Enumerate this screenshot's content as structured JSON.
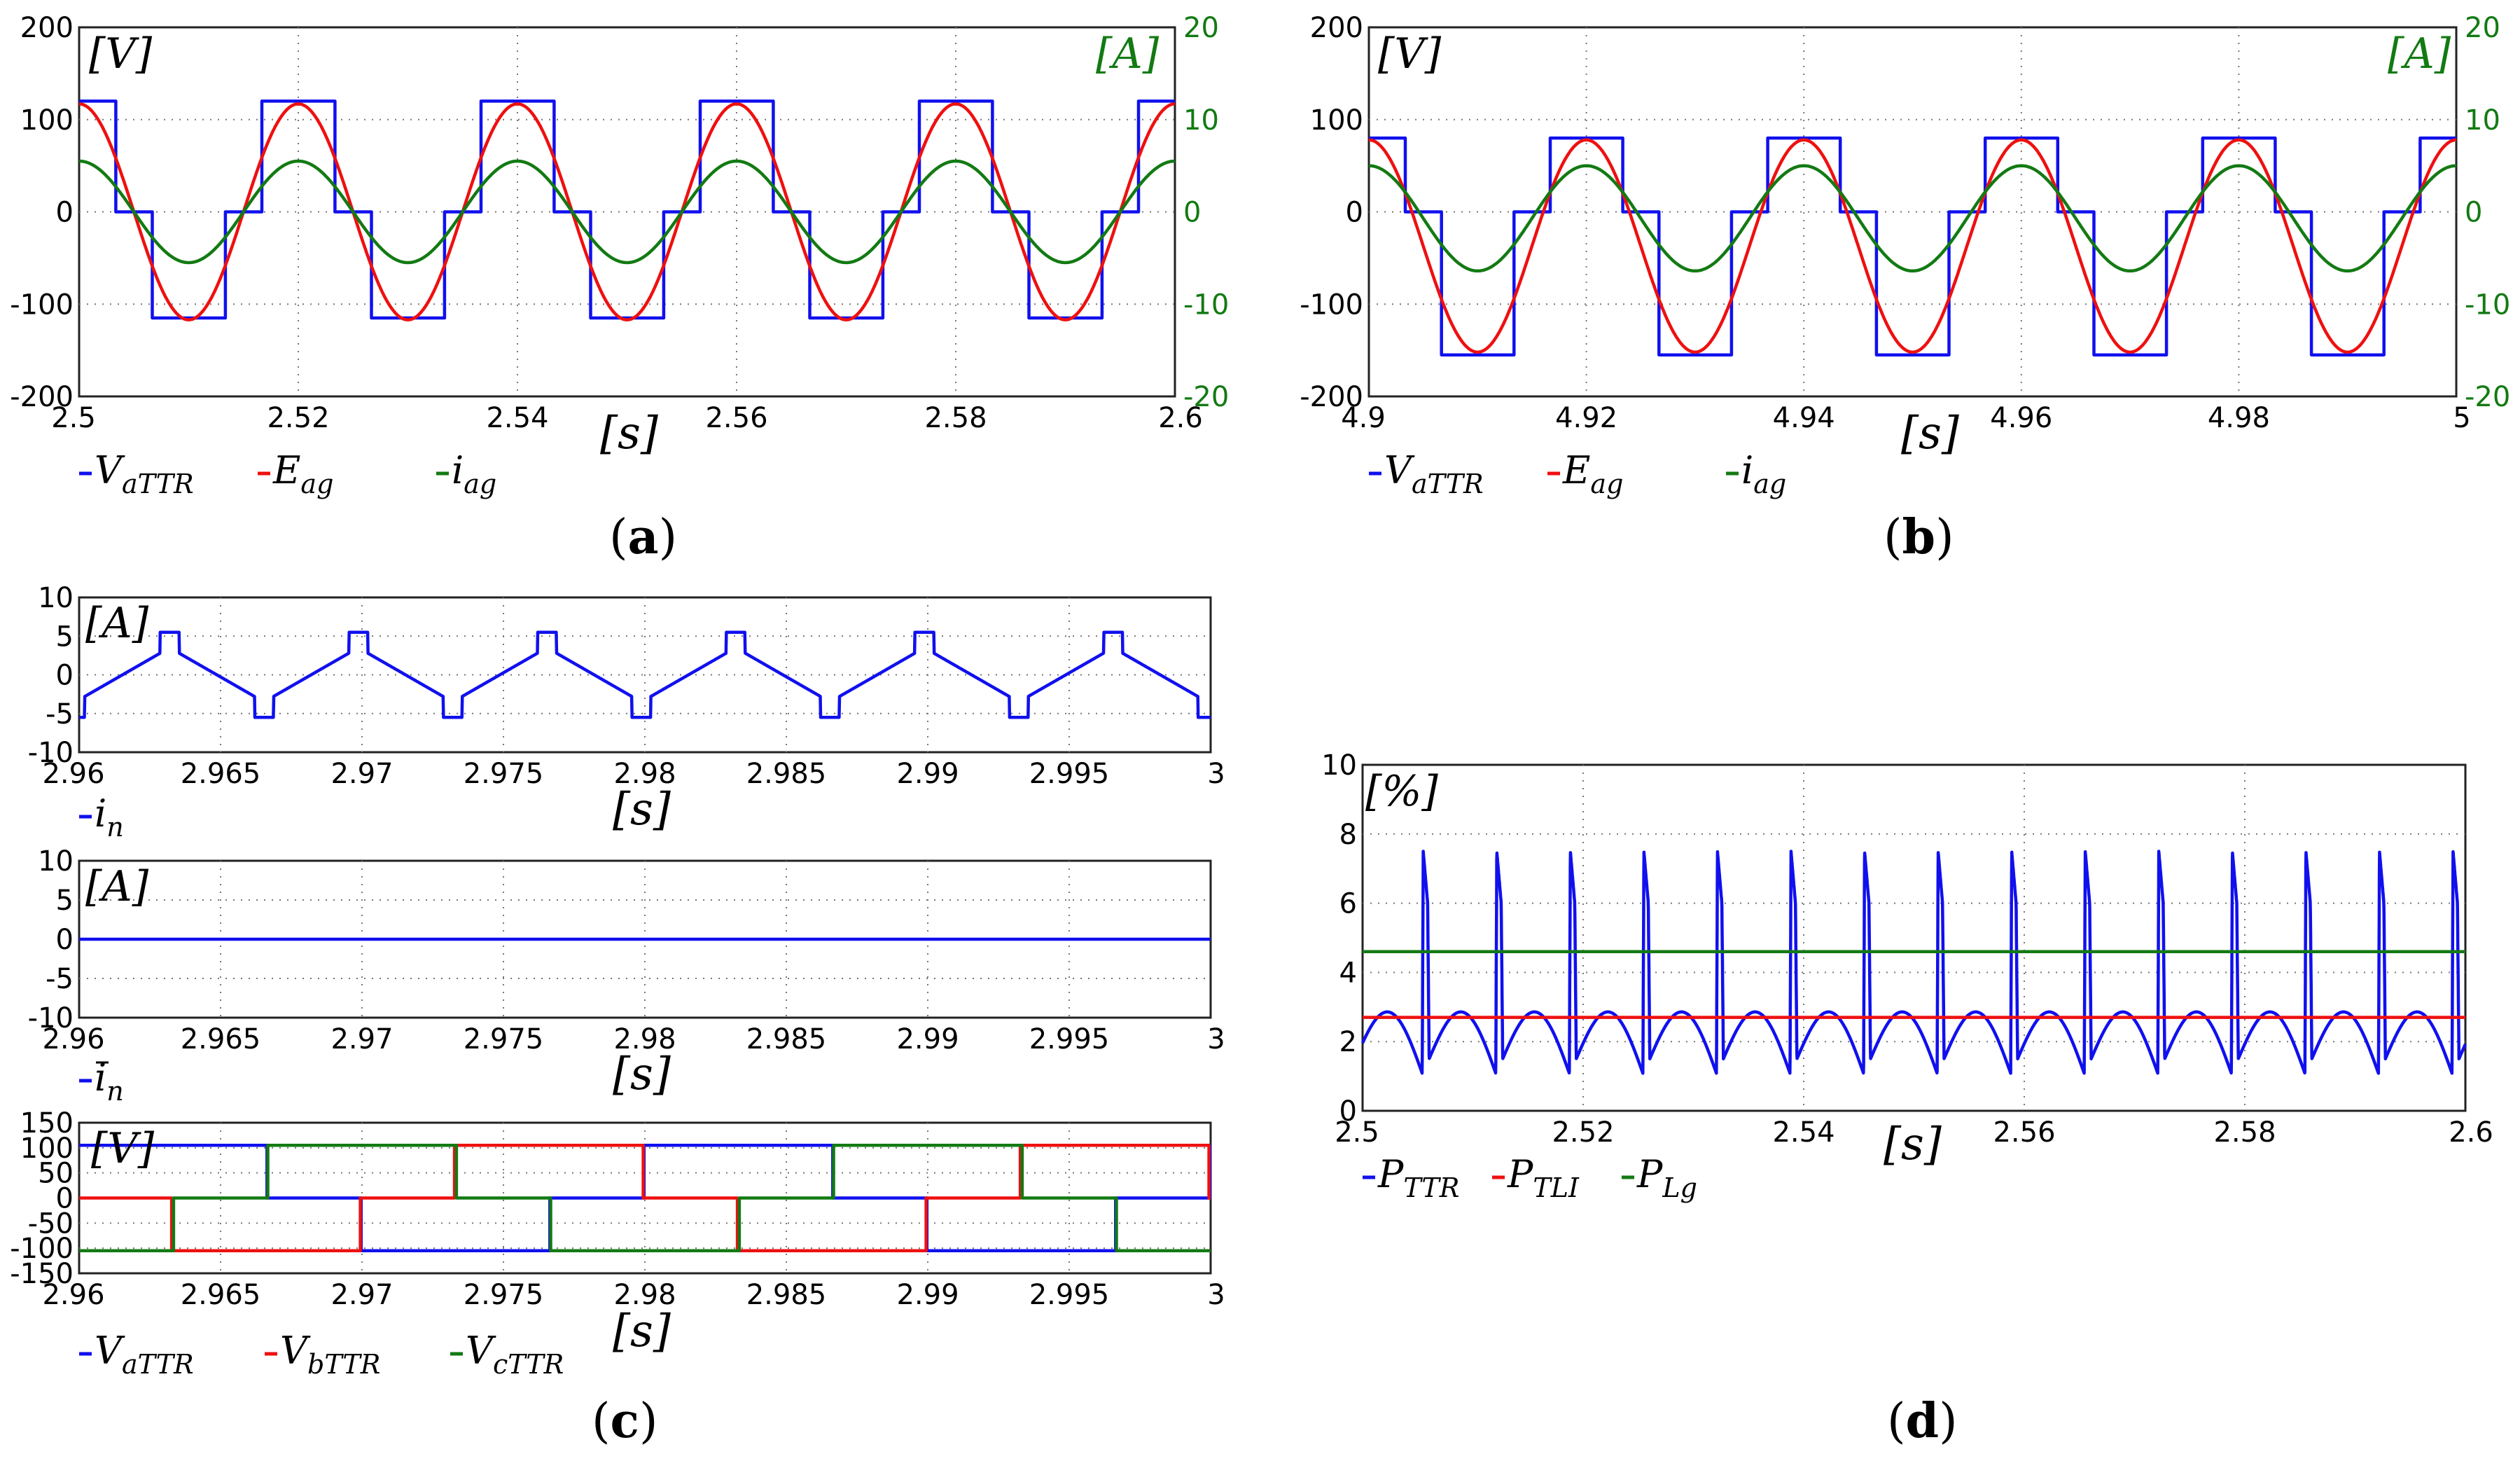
{
  "colors": {
    "blue": "#1010ee",
    "red": "#ee1010",
    "green": "#137a13"
  },
  "chart_data": [
    {
      "id": "a",
      "caption": "a",
      "type": "line",
      "xlabel": "[s]",
      "ylabel_left": "[V]",
      "ylabel_right": "[A]",
      "xlim": [
        2.5,
        2.6
      ],
      "ylim_left": [
        -200,
        200
      ],
      "ylim_right": [
        -20,
        20
      ],
      "xticks": [
        "2.5",
        "2.52",
        "2.54",
        "2.56",
        "2.58",
        "2.6"
      ],
      "yticks_left": [
        "200",
        "100",
        "0",
        "-100",
        "-200"
      ],
      "yticks_right": [
        "20",
        "10",
        "0",
        "-10",
        "-20"
      ],
      "period_s": 0.02,
      "series": [
        {
          "name": "V_aTTR",
          "legend": "V",
          "legend_sub": "aTTR",
          "color": "blue",
          "kind": "stair3",
          "amplitude": 120,
          "negative_amplitude": -115,
          "step_start": 2.5
        },
        {
          "name": "E_ag",
          "legend": "E",
          "legend_sub": "ag",
          "color": "red",
          "kind": "sine",
          "amplitude": 117,
          "phase_peak": 2.52
        },
        {
          "name": "i_ag",
          "legend": "i",
          "legend_sub": "ag",
          "color": "green",
          "kind": "sine",
          "axis": "right",
          "amplitude": 5.5,
          "phase_peak": 2.52
        }
      ]
    },
    {
      "id": "b",
      "caption": "b",
      "type": "line",
      "xlabel": "[s]",
      "ylabel_left": "[V]",
      "ylabel_right": "[A]",
      "xlim": [
        4.9,
        5.0
      ],
      "ylim_left": [
        -200,
        200
      ],
      "ylim_right": [
        -20,
        20
      ],
      "xticks": [
        "4.9",
        "4.92",
        "4.94",
        "4.96",
        "4.98",
        "5"
      ],
      "yticks_left": [
        "200",
        "100",
        "0",
        "-100",
        "-200"
      ],
      "yticks_right": [
        "20",
        "10",
        "0",
        "-10",
        "-20"
      ],
      "period_s": 0.02,
      "series": [
        {
          "name": "V_aTTR",
          "legend": "V",
          "legend_sub": "aTTR",
          "color": "blue",
          "kind": "stair3",
          "amplitude": 80,
          "negative_amplitude": -155,
          "step_start": 4.9
        },
        {
          "name": "E_ag",
          "legend": "E",
          "legend_sub": "ag",
          "color": "red",
          "kind": "sine_offset",
          "amplitude": 115,
          "offset": -37,
          "phase_peak": 4.92
        },
        {
          "name": "i_ag",
          "legend": "i",
          "legend_sub": "ag",
          "color": "green",
          "kind": "sine_offset",
          "axis": "right",
          "amplitude": 5.7,
          "offset": -0.7,
          "phase_peak": 4.92
        }
      ]
    },
    {
      "id": "c1",
      "type": "line",
      "xlabel": "[s]",
      "ylabel_left": "[A]",
      "xlim": [
        2.96,
        3.0
      ],
      "ylim_left": [
        -10,
        10
      ],
      "xticks": [
        "2.96",
        "2.965",
        "2.97",
        "2.975",
        "2.98",
        "2.985",
        "2.99",
        "2.995",
        "3"
      ],
      "yticks_left": [
        "10",
        "5",
        "0",
        "-5",
        "-10"
      ],
      "series": [
        {
          "name": "i_n",
          "legend": "i",
          "legend_sub": "n",
          "color": "blue",
          "kind": "sawtooth",
          "peak": 5.5,
          "trough": -5.5,
          "ramp_high": 2.8,
          "ramp_low": -2.8,
          "period_s": 0.00667
        }
      ]
    },
    {
      "id": "c2",
      "type": "line",
      "xlabel": "[s]",
      "ylabel_left": "[A]",
      "xlim": [
        2.96,
        3.0
      ],
      "ylim_left": [
        -10,
        10
      ],
      "xticks": [
        "2.96",
        "2.965",
        "2.97",
        "2.975",
        "2.98",
        "2.985",
        "2.99",
        "2.995",
        "3"
      ],
      "yticks_left": [
        "10",
        "5",
        "0",
        "-5",
        "-10"
      ],
      "series": [
        {
          "name": "i_n_bar",
          "legend": "i",
          "legend_sub": "n",
          "legend_bar": true,
          "color": "blue",
          "kind": "constant",
          "value": 0
        }
      ]
    },
    {
      "id": "c3",
      "caption": "c",
      "type": "line",
      "xlabel": "[s]",
      "ylabel_left": "[V]",
      "xlim": [
        2.96,
        3.0
      ],
      "ylim_left": [
        -150,
        150
      ],
      "xticks": [
        "2.96",
        "2.965",
        "2.97",
        "2.975",
        "2.98",
        "2.985",
        "2.99",
        "2.995",
        "3"
      ],
      "yticks_left": [
        "150",
        "100",
        "50",
        "0",
        "-50",
        "-100",
        "-150"
      ],
      "period_s": 0.02,
      "series": [
        {
          "name": "V_aTTR",
          "legend": "V",
          "legend_sub": "aTTR",
          "color": "blue",
          "kind": "stair3",
          "amplitude": 105,
          "negative_amplitude": -105,
          "step_start": 2.9633
        },
        {
          "name": "V_bTTR",
          "legend": "V",
          "legend_sub": "bTTR",
          "color": "red",
          "kind": "stair3",
          "amplitude": 105,
          "negative_amplitude": -105,
          "step_start": 2.9566
        },
        {
          "name": "V_cTTR",
          "legend": "V",
          "legend_sub": "cTTR",
          "color": "green",
          "kind": "stair3",
          "amplitude": 105,
          "negative_amplitude": -105,
          "step_start": 2.95
        }
      ]
    },
    {
      "id": "d",
      "caption": "d",
      "type": "line",
      "xlabel": "[s]",
      "ylabel_left": "[%]",
      "xlim": [
        2.5,
        2.6
      ],
      "ylim_left": [
        0,
        10
      ],
      "xticks": [
        "2.5",
        "2.52",
        "2.54",
        "2.56",
        "2.58",
        "2.6"
      ],
      "yticks_left": [
        "10",
        "8",
        "6",
        "4",
        "2",
        "0"
      ],
      "series": [
        {
          "name": "P_TTR",
          "legend": "P",
          "legend_sub": "TTR",
          "color": "blue",
          "kind": "loss_ripple",
          "period_s": 0.00667,
          "jump_high": 7.5,
          "jump_mid": 6.0,
          "arc_top": 3.1,
          "arc_bottom": 1.0
        },
        {
          "name": "P_TLI",
          "legend": "P",
          "legend_sub": "TLI",
          "color": "red",
          "kind": "constant",
          "value": 2.7
        },
        {
          "name": "P_Lg",
          "legend": "P",
          "legend_sub": "Lg",
          "color": "green",
          "kind": "constant",
          "value": 4.6
        }
      ]
    }
  ]
}
